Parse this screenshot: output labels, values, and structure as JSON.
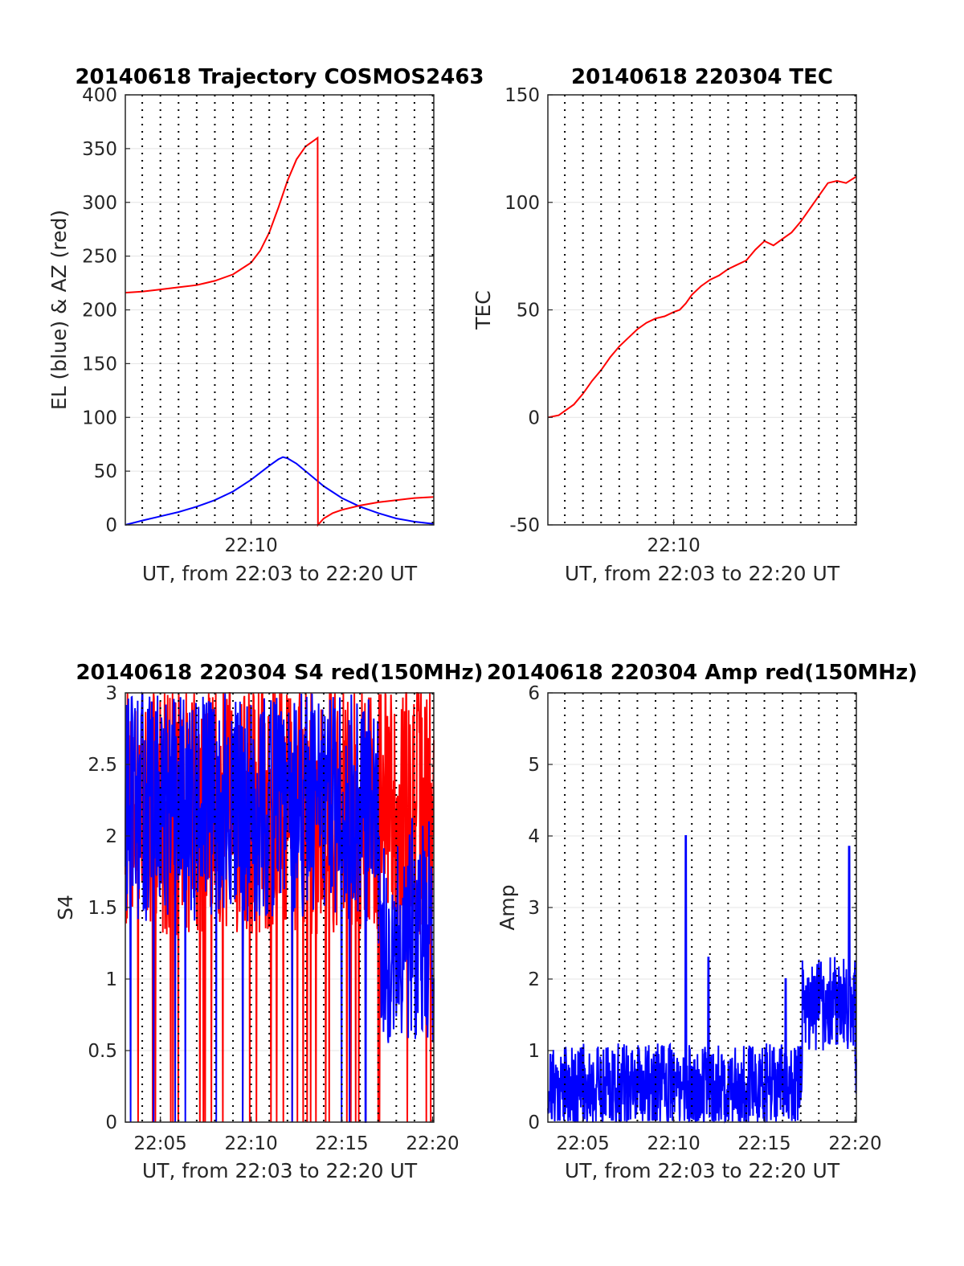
{
  "chart_data": [
    {
      "type": "line",
      "title": "20140618 Trajectory COSMOS2463",
      "ylabel": "EL (blue) & AZ (red)",
      "xlabel": "UT, from 22:03 to 22:20 UT",
      "xlim": [
        "22:03:04",
        "22:20:04"
      ],
      "ylim": [
        0,
        400
      ],
      "yticks": [
        0,
        50,
        100,
        150,
        200,
        250,
        300,
        350,
        400
      ],
      "xticks": [
        {
          "t": "22:10",
          "label": "22:10"
        }
      ],
      "vlines": [
        "22:04",
        "22:05",
        "22:06",
        "22:07",
        "22:08",
        "22:09",
        "22:10",
        "22:11",
        "22:12",
        "22:13",
        "22:14",
        "22:15",
        "22:16",
        "22:17",
        "22:18",
        "22:19",
        "22:20"
      ],
      "grid": true,
      "series": [
        {
          "color": "#0000ff",
          "points": [
            [
              "22:03:04",
              0
            ],
            [
              "22:04:00",
              4
            ],
            [
              "22:05:00",
              8
            ],
            [
              "22:06:00",
              12
            ],
            [
              "22:07:00",
              17
            ],
            [
              "22:08:00",
              23
            ],
            [
              "22:09:00",
              31
            ],
            [
              "22:10:00",
              42
            ],
            [
              "22:11:00",
              55
            ],
            [
              "22:11:30",
              61
            ],
            [
              "22:11:45",
              63
            ],
            [
              "22:12:00",
              62
            ],
            [
              "22:12:30",
              57
            ],
            [
              "22:13:00",
              50
            ],
            [
              "22:13:30",
              43
            ],
            [
              "22:14:00",
              36
            ],
            [
              "22:15:00",
              25
            ],
            [
              "22:16:00",
              17
            ],
            [
              "22:17:00",
              11
            ],
            [
              "22:18:00",
              6
            ],
            [
              "22:19:00",
              3
            ],
            [
              "22:20:04",
              1
            ]
          ]
        },
        {
          "color": "#ff0000",
          "points": [
            [
              "22:03:04",
              216
            ],
            [
              "22:04:00",
              217
            ],
            [
              "22:05:00",
              219
            ],
            [
              "22:06:00",
              221
            ],
            [
              "22:07:00",
              223
            ],
            [
              "22:08:00",
              227
            ],
            [
              "22:09:00",
              233
            ],
            [
              "22:10:00",
              244
            ],
            [
              "22:10:30",
              255
            ],
            [
              "22:11:00",
              272
            ],
            [
              "22:11:30",
              295
            ],
            [
              "22:12:00",
              320
            ],
            [
              "22:12:30",
              340
            ],
            [
              "22:13:00",
              352
            ],
            [
              "22:13:30",
              358
            ],
            [
              "22:13:40",
              360
            ],
            [
              "22:13:41",
              0
            ],
            [
              "22:14:00",
              6
            ],
            [
              "22:14:30",
              11
            ],
            [
              "22:15:00",
              14
            ],
            [
              "22:16:00",
              18
            ],
            [
              "22:17:00",
              21
            ],
            [
              "22:18:00",
              23
            ],
            [
              "22:19:00",
              25
            ],
            [
              "22:20:04",
              26
            ]
          ]
        }
      ]
    },
    {
      "type": "line",
      "title": "20140618 220304 TEC",
      "ylabel": "TEC",
      "xlabel": "UT, from 22:03 to 22:20 UT",
      "xlim": [
        "22:03:04",
        "22:20:04"
      ],
      "ylim": [
        -50,
        150
      ],
      "yticks": [
        -50,
        0,
        50,
        100,
        150
      ],
      "xticks": [
        {
          "t": "22:10",
          "label": "22:10"
        }
      ],
      "vlines": [
        "22:04",
        "22:05",
        "22:06",
        "22:07",
        "22:08",
        "22:09",
        "22:10",
        "22:11",
        "22:12",
        "22:13",
        "22:14",
        "22:15",
        "22:16",
        "22:17",
        "22:18",
        "22:19",
        "22:20"
      ],
      "grid": true,
      "series": [
        {
          "color": "#ff0000",
          "points": [
            [
              "22:03:04",
              0
            ],
            [
              "22:03:40",
              1
            ],
            [
              "22:04:00",
              3
            ],
            [
              "22:04:30",
              6
            ],
            [
              "22:05:00",
              11
            ],
            [
              "22:05:30",
              17
            ],
            [
              "22:06:00",
              22
            ],
            [
              "22:06:30",
              28
            ],
            [
              "22:07:00",
              33
            ],
            [
              "22:07:30",
              37
            ],
            [
              "22:08:00",
              41
            ],
            [
              "22:08:30",
              44
            ],
            [
              "22:09:00",
              46
            ],
            [
              "22:09:30",
              47
            ],
            [
              "22:10:00",
              49
            ],
            [
              "22:10:20",
              50
            ],
            [
              "22:10:40",
              53
            ],
            [
              "22:11:00",
              57
            ],
            [
              "22:11:30",
              61
            ],
            [
              "22:12:00",
              64
            ],
            [
              "22:12:30",
              66
            ],
            [
              "22:13:00",
              69
            ],
            [
              "22:13:30",
              71
            ],
            [
              "22:14:00",
              73
            ],
            [
              "22:14:30",
              78
            ],
            [
              "22:15:00",
              82
            ],
            [
              "22:15:30",
              80
            ],
            [
              "22:16:00",
              83
            ],
            [
              "22:16:30",
              86
            ],
            [
              "22:17:00",
              91
            ],
            [
              "22:17:30",
              97
            ],
            [
              "22:18:00",
              103
            ],
            [
              "22:18:30",
              109
            ],
            [
              "22:19:00",
              110
            ],
            [
              "22:19:30",
              109
            ],
            [
              "22:20:04",
              112
            ]
          ]
        }
      ]
    },
    {
      "type": "line",
      "title": "20140618 220304 S4 red(150MHz)",
      "ylabel": "S4",
      "xlabel": "UT, from 22:03 to 22:20 UT",
      "xlim": [
        "22:03:04",
        "22:20:04"
      ],
      "ylim": [
        0,
        3
      ],
      "yticks": [
        0,
        0.5,
        1,
        1.5,
        2,
        2.5,
        3
      ],
      "ytick_labels": [
        "0",
        "0.5",
        "1",
        "1.5",
        "2",
        "2.5",
        "3"
      ],
      "xticks": [
        {
          "t": "22:05",
          "label": "22:05"
        },
        {
          "t": "22:10",
          "label": "22:10"
        },
        {
          "t": "22:15",
          "label": "22:15"
        },
        {
          "t": "22:20",
          "label": "22:20"
        }
      ],
      "vlines": [
        "22:04",
        "22:05",
        "22:06",
        "22:07",
        "22:08",
        "22:09",
        "22:10",
        "22:11",
        "22:12",
        "22:13",
        "22:14",
        "22:15",
        "22:16",
        "22:17",
        "22:18",
        "22:19",
        "22:20"
      ],
      "grid": true,
      "series": [
        {
          "color": "#ff0000",
          "noise": {
            "base": 2.2,
            "spread": 0.9,
            "n": 700,
            "seed": 7,
            "drops": 0.05
          }
        },
        {
          "color": "#0000ff",
          "noise": {
            "base": 2.2,
            "spread": 0.8,
            "n": 700,
            "seed": 13,
            "drops": 0.012,
            "late_base": 1.35
          }
        }
      ]
    },
    {
      "type": "line",
      "title": "20140618 220304 Amp red(150MHz)",
      "ylabel": "Amp",
      "xlabel": "UT, from 22:03 to 22:20 UT",
      "xlim": [
        "22:03:04",
        "22:20:04"
      ],
      "ylim": [
        0,
        6
      ],
      "yticks": [
        0,
        1,
        2,
        3,
        4,
        5,
        6
      ],
      "xticks": [
        {
          "t": "22:05",
          "label": "22:05"
        },
        {
          "t": "22:10",
          "label": "22:10"
        },
        {
          "t": "22:15",
          "label": "22:15"
        },
        {
          "t": "22:20",
          "label": "22:20"
        }
      ],
      "vlines": [
        "22:04",
        "22:05",
        "22:06",
        "22:07",
        "22:08",
        "22:09",
        "22:10",
        "22:11",
        "22:12",
        "22:13",
        "22:14",
        "22:15",
        "22:16",
        "22:17",
        "22:18",
        "22:19",
        "22:20"
      ],
      "grid": true,
      "series": [
        {
          "color": "#0000ff",
          "noise": {
            "base": 0.5,
            "spread": 0.6,
            "n": 900,
            "seed": 21,
            "spikes": [
              [
                "22:10:40",
                4.0
              ],
              [
                "22:11:55",
                2.3
              ],
              [
                "22:16:10",
                2.0
              ],
              [
                "22:19:40",
                3.85
              ]
            ],
            "elevated": [
              "22:17:05",
              "22:20:00",
              2.2
            ]
          }
        }
      ]
    }
  ]
}
